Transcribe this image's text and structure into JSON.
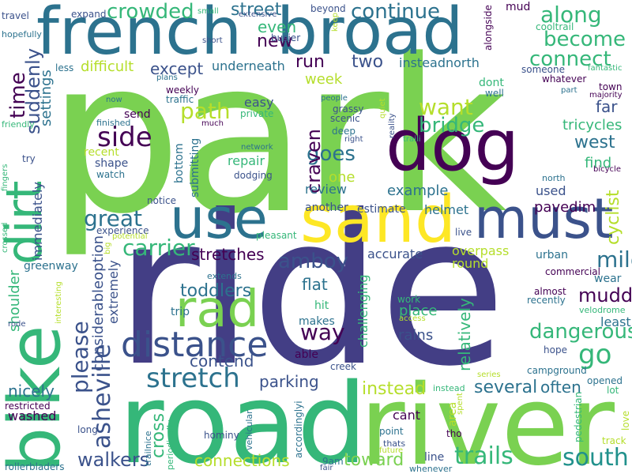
{
  "palette": {
    "purple": "#440154",
    "indigo": "#482878",
    "blue": "#3e4989",
    "steel": "#31688e",
    "teal": "#26828e",
    "green": "#1f9e89",
    "emerald": "#35b779",
    "lime": "#6ece58",
    "yellowgreen": "#b5de2b",
    "yellow": "#fde725"
  },
  "words": [
    {
      "text": "park",
      "color": "#7ad151"
    },
    {
      "text": "ride",
      "color": "#433e85"
    },
    {
      "text": "road",
      "color": "#35b779"
    },
    {
      "text": "river",
      "color": "#7ad151"
    },
    {
      "text": "bike",
      "color": "#35b779"
    },
    {
      "text": "french",
      "color": "#2c728e"
    },
    {
      "text": "broad",
      "color": "#2c728e"
    },
    {
      "text": "dog",
      "color": "#440154"
    },
    {
      "text": "sand",
      "color": "#fde725"
    },
    {
      "text": "must",
      "color": "#3b528b"
    },
    {
      "text": "use",
      "color": "#2c728e"
    },
    {
      "text": "rad",
      "color": "#7ad151"
    },
    {
      "text": "dirt",
      "color": "#35b779"
    },
    {
      "text": "distance",
      "color": "#3b528b"
    },
    {
      "text": "stretch",
      "color": "#2c728e"
    },
    {
      "text": "asheville",
      "color": "#3b528b"
    },
    {
      "text": "please",
      "color": "#3b528b"
    },
    {
      "text": "trails",
      "color": "#35b779"
    },
    {
      "text": "south",
      "color": "#21918c"
    },
    {
      "text": "walkers",
      "color": "#3b528b"
    },
    {
      "text": "connections",
      "color": "#b5de2b"
    },
    {
      "text": "toward",
      "color": "#7ad151"
    },
    {
      "text": "cross",
      "color": "#35b779"
    },
    {
      "text": "several",
      "color": "#2c728e"
    },
    {
      "text": "instead",
      "color": "#b5de2b"
    },
    {
      "text": "parking",
      "color": "#3b528b"
    },
    {
      "text": "contend",
      "color": "#3b528b"
    },
    {
      "text": "often",
      "color": "#2c728e"
    },
    {
      "text": "go",
      "color": "#35b779"
    },
    {
      "text": "dangerous",
      "color": "#35b779"
    },
    {
      "text": "muddy",
      "color": "#440154"
    },
    {
      "text": "mile",
      "color": "#2c728e"
    },
    {
      "text": "amboy",
      "color": "#3b528b"
    },
    {
      "text": "way",
      "color": "#440154"
    },
    {
      "text": "toddlers",
      "color": "#2c728e"
    },
    {
      "text": "stretches",
      "color": "#440154"
    },
    {
      "text": "carrier",
      "color": "#35b779"
    },
    {
      "text": "great",
      "color": "#2c728e"
    },
    {
      "text": "side",
      "color": "#440154"
    },
    {
      "text": "path",
      "color": "#b5de2b"
    },
    {
      "text": "time",
      "color": "#440154"
    },
    {
      "text": "suddenly",
      "color": "#3b528b"
    },
    {
      "text": "settings",
      "color": "#2c728e"
    },
    {
      "text": "crowded",
      "color": "#35b779"
    },
    {
      "text": "continue",
      "color": "#2c728e"
    },
    {
      "text": "along",
      "color": "#35b779"
    },
    {
      "text": "become",
      "color": "#35b779"
    },
    {
      "text": "connect",
      "color": "#35b779"
    },
    {
      "text": "street",
      "color": "#2c728e"
    },
    {
      "text": "even",
      "color": "#35b779"
    },
    {
      "text": "new",
      "color": "#440154"
    },
    {
      "text": "run",
      "color": "#440154"
    },
    {
      "text": "two",
      "color": "#3b528b"
    },
    {
      "text": "except",
      "color": "#3b528b"
    },
    {
      "text": "underneath",
      "color": "#2c728e"
    },
    {
      "text": "difficult",
      "color": "#b5de2b"
    },
    {
      "text": "week",
      "color": "#b5de2b"
    },
    {
      "text": "want",
      "color": "#b5de2b"
    },
    {
      "text": "bridge",
      "color": "#35b779"
    },
    {
      "text": "west",
      "color": "#2c728e"
    },
    {
      "text": "cyclist",
      "color": "#b5de2b"
    },
    {
      "text": "far",
      "color": "#3b528b"
    },
    {
      "text": "tricycles",
      "color": "#35b779"
    },
    {
      "text": "find",
      "color": "#35b779"
    },
    {
      "text": "goes",
      "color": "#2c728e"
    },
    {
      "text": "craven",
      "color": "#440154"
    },
    {
      "text": "easy",
      "color": "#3b528b"
    },
    {
      "text": "one",
      "color": "#b5de2b"
    },
    {
      "text": "repair",
      "color": "#35b779"
    },
    {
      "text": "review",
      "color": "#2c728e"
    },
    {
      "text": "example",
      "color": "#2c728e"
    },
    {
      "text": "used",
      "color": "#3b528b"
    },
    {
      "text": "pavedim",
      "color": "#440154"
    },
    {
      "text": "helmet",
      "color": "#2c728e"
    },
    {
      "text": "another",
      "color": "#3b528b"
    },
    {
      "text": "estimate",
      "color": "#3b528b"
    },
    {
      "text": "accurate",
      "color": "#3b528b"
    },
    {
      "text": "overpass",
      "color": "#b5de2b"
    },
    {
      "text": "round",
      "color": "#b5de2b"
    },
    {
      "text": "urban",
      "color": "#2c728e"
    },
    {
      "text": "flat",
      "color": "#2c728e"
    },
    {
      "text": "relatively",
      "color": "#35b779"
    },
    {
      "text": "challenging",
      "color": "#35b779"
    },
    {
      "text": "hit",
      "color": "#35b779"
    },
    {
      "text": "makes",
      "color": "#2c728e"
    },
    {
      "text": "place",
      "color": "#35b779"
    },
    {
      "text": "rains",
      "color": "#3b528b"
    },
    {
      "text": "least",
      "color": "#2c728e"
    },
    {
      "text": "wear",
      "color": "#2c728e"
    },
    {
      "text": "recently",
      "color": "#2c728e"
    },
    {
      "text": "almost",
      "color": "#440154"
    },
    {
      "text": "commercial",
      "color": "#440154"
    },
    {
      "text": "velodrome",
      "color": "#35b779"
    },
    {
      "text": "hope",
      "color": "#3b528b"
    },
    {
      "text": "campground",
      "color": "#2c728e"
    },
    {
      "text": "opened",
      "color": "#2c728e"
    },
    {
      "text": "lot",
      "color": "#35b779"
    },
    {
      "text": "shoulder",
      "color": "#35b779"
    },
    {
      "text": "nicely",
      "color": "#2c728e"
    },
    {
      "text": "washed",
      "color": "#440154"
    },
    {
      "text": "restricted",
      "color": "#440154"
    },
    {
      "text": "rode",
      "color": "#3b528b"
    },
    {
      "text": "rollerbladers",
      "color": "#2c728e"
    },
    {
      "text": "greenway",
      "color": "#2c728e"
    },
    {
      "text": "immediately",
      "color": "#3b528b"
    },
    {
      "text": "crossed",
      "color": "#35b779"
    },
    {
      "text": "fingers",
      "color": "#35b779"
    },
    {
      "text": "try",
      "color": "#3b528b"
    },
    {
      "text": "friendly",
      "color": "#35b779"
    },
    {
      "text": "hopefully",
      "color": "#2c728e"
    },
    {
      "text": "travel",
      "color": "#3b528b"
    },
    {
      "text": "expand",
      "color": "#3b528b"
    },
    {
      "text": "small",
      "color": "#35b779"
    },
    {
      "text": "extensive",
      "color": "#3b528b"
    },
    {
      "text": "beyond",
      "color": "#3b528b"
    },
    {
      "text": "keep",
      "color": "#b5de2b"
    },
    {
      "text": "alongside",
      "color": "#440154"
    },
    {
      "text": "mud",
      "color": "#440154"
    },
    {
      "text": "cooltrail",
      "color": "#35b779"
    },
    {
      "text": "fantastic",
      "color": "#35b779"
    },
    {
      "text": "town",
      "color": "#440154"
    },
    {
      "text": "majority",
      "color": "#440154"
    },
    {
      "text": "part",
      "color": "#2c728e"
    },
    {
      "text": "whatever",
      "color": "#440154"
    },
    {
      "text": "someone",
      "color": "#3b528b"
    },
    {
      "text": "dont",
      "color": "#35b779"
    },
    {
      "text": "well",
      "color": "#2c728e"
    },
    {
      "text": "insteadnorth",
      "color": "#2c728e"
    },
    {
      "text": "less",
      "color": "#2c728e"
    },
    {
      "text": "plans",
      "color": "#2c728e"
    },
    {
      "text": "short",
      "color": "#3b528b"
    },
    {
      "text": "busier",
      "color": "#3b528b"
    },
    {
      "text": "weekly",
      "color": "#440154"
    },
    {
      "text": "traffic",
      "color": "#2c728e"
    },
    {
      "text": "now",
      "color": "#2c728e"
    },
    {
      "text": "send",
      "color": "#440154"
    },
    {
      "text": "finished",
      "color": "#2c728e"
    },
    {
      "text": "much",
      "color": "#440154"
    },
    {
      "text": "private",
      "color": "#35b779"
    },
    {
      "text": "people",
      "color": "#2c728e"
    },
    {
      "text": "quiet",
      "color": "#b5de2b"
    },
    {
      "text": "reality",
      "color": "#3b528b"
    },
    {
      "text": "scenic",
      "color": "#3b528b"
    },
    {
      "text": "deep",
      "color": "#2c728e"
    },
    {
      "text": "right",
      "color": "#3b528b"
    },
    {
      "text": "traili",
      "color": "#35b779"
    },
    {
      "text": "recent",
      "color": "#b5de2b"
    },
    {
      "text": "shape",
      "color": "#3b528b"
    },
    {
      "text": "watch",
      "color": "#2c728e"
    },
    {
      "text": "bottom",
      "color": "#2c728e"
    },
    {
      "text": "submitting",
      "color": "#2c728e"
    },
    {
      "text": "network",
      "color": "#2c728e"
    },
    {
      "text": "dodging",
      "color": "#3b528b"
    },
    {
      "text": "north",
      "color": "#2c728e"
    },
    {
      "text": "bicycle",
      "color": "#440154"
    },
    {
      "text": "notice",
      "color": "#3b528b"
    },
    {
      "text": "pleasant",
      "color": "#35b779"
    },
    {
      "text": "experience",
      "color": "#3b528b"
    },
    {
      "text": "potential",
      "color": "#b5de2b"
    },
    {
      "text": "big",
      "color": "#b5de2b"
    },
    {
      "text": "live",
      "color": "#3b528b"
    },
    {
      "text": "considerableoption",
      "color": "#3b528b"
    },
    {
      "text": "extremely",
      "color": "#3b528b"
    },
    {
      "text": "trip",
      "color": "#2c728e"
    },
    {
      "text": "extends",
      "color": "#2c728e"
    },
    {
      "text": "interesting",
      "color": "#b5de2b"
    },
    {
      "text": "work",
      "color": "#35b779"
    },
    {
      "text": "access",
      "color": "#b5de2b"
    },
    {
      "text": "grassy",
      "color": "#3b528b"
    },
    {
      "text": "able",
      "color": "#440154"
    },
    {
      "text": "creek",
      "color": "#3b528b"
    },
    {
      "text": "accordinglyi",
      "color": "#2c728e"
    },
    {
      "text": "vehicular",
      "color": "#2c728e"
    },
    {
      "text": "long",
      "color": "#3b528b"
    },
    {
      "text": "trailnice",
      "color": "#2c728e"
    },
    {
      "text": "periodically",
      "color": "#35b779"
    },
    {
      "text": "hominy",
      "color": "#3b528b"
    },
    {
      "text": "point",
      "color": "#2c728e"
    },
    {
      "text": "thats",
      "color": "#3b528b"
    },
    {
      "text": "future",
      "color": "#b5de2b"
    },
    {
      "text": "cant",
      "color": "#440154"
    },
    {
      "text": "area",
      "color": "#b5de2b"
    },
    {
      "text": "tho",
      "color": "#440154"
    },
    {
      "text": "spent",
      "color": "#b5de2b"
    },
    {
      "text": "series",
      "color": "#b5de2b"
    },
    {
      "text": "pedestrian",
      "color": "#35b779"
    },
    {
      "text": "track",
      "color": "#b5de2b"
    },
    {
      "text": "love",
      "color": "#b5de2b"
    },
    {
      "text": "line",
      "color": "#3b528b"
    },
    {
      "text": "9am",
      "color": "#2c728e"
    },
    {
      "text": "fair",
      "color": "#3b528b"
    },
    {
      "text": "whenever",
      "color": "#2c728e"
    },
    {
      "text": "instead",
      "color": "#35b779"
    }
  ]
}
